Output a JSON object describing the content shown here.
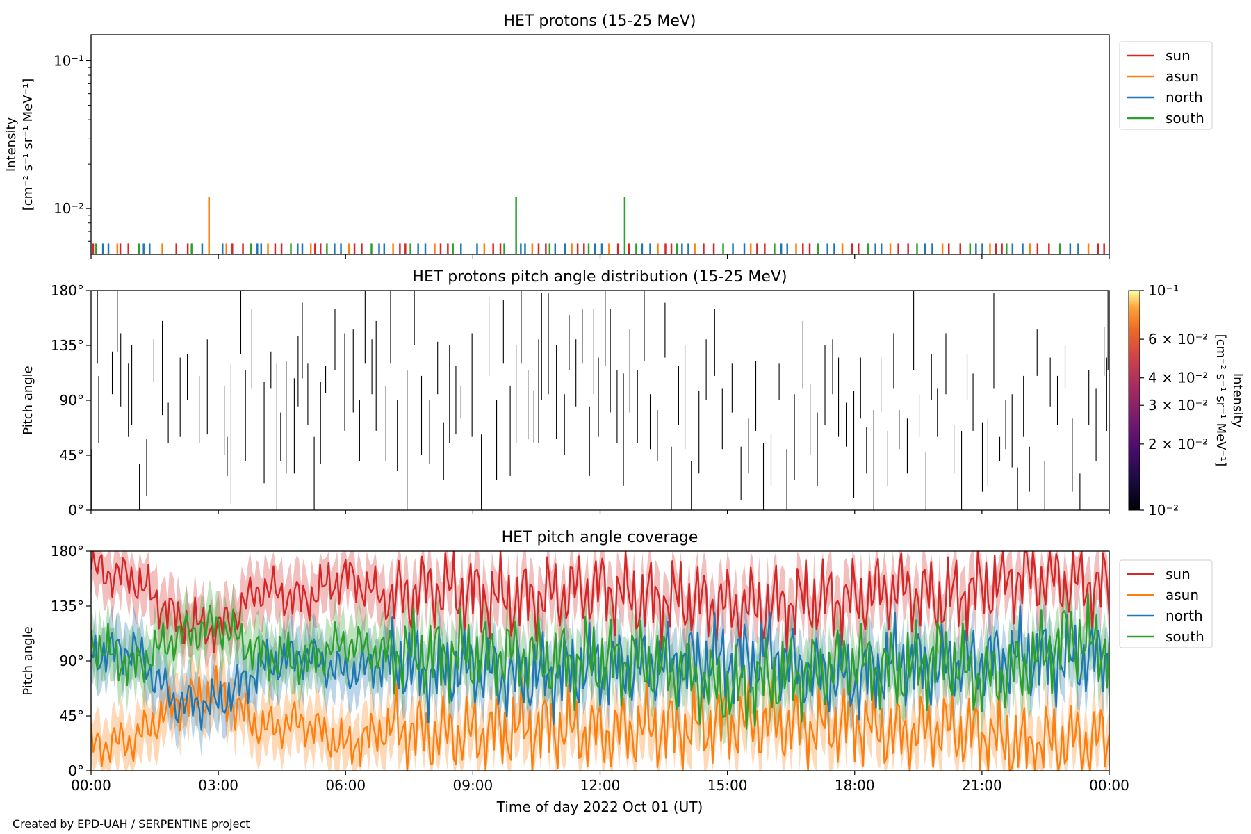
{
  "figure": {
    "credit": "Created by EPD-UAH / SERPENTINE project",
    "xlabel": "Time of day 2022 Oct 01 (UT)",
    "x_ticks": [
      "00:00",
      "03:00",
      "06:00",
      "09:00",
      "12:00",
      "15:00",
      "18:00",
      "21:00",
      "00:00"
    ]
  },
  "chart_data": [
    {
      "type": "line",
      "title": "HET protons (15-25 MeV)",
      "xlabel": "",
      "ylabel_lines": [
        "Intensity",
        "[cm⁻² s⁻¹ sr⁻¹ MeV⁻¹]"
      ],
      "yscale": "log",
      "ylim": [
        0.0049,
        0.15
      ],
      "y_ticks": [
        {
          "value": 0.01,
          "label": "10⁻²"
        },
        {
          "value": 0.1,
          "label": "10⁻¹"
        }
      ],
      "xlim_hours": [
        0,
        24
      ],
      "grid": false,
      "legend_placement": "outside right-top",
      "series_colors": {
        "sun": "#d62728",
        "asun": "#ff7f0e",
        "north": "#1f77b4",
        "south": "#2ca02c"
      },
      "series": [
        {
          "name": "sun",
          "color": "#d62728"
        },
        {
          "name": "asun",
          "color": "#ff7f0e"
        },
        {
          "name": "north",
          "color": "#1f77b4"
        },
        {
          "name": "south",
          "color": "#2ca02c"
        }
      ],
      "spike_level_cluster": 0.0058,
      "spikes": [
        {
          "series": "asun",
          "x_hours": 2.78,
          "y": 0.012
        },
        {
          "series": "south",
          "x_hours": 10.02,
          "y": 0.012
        },
        {
          "series": "south",
          "x_hours": 12.58,
          "y": 0.012
        }
      ],
      "spike_times_hours": [
        0.05,
        0.12,
        0.28,
        0.41,
        0.62,
        0.69,
        0.88,
        1.13,
        1.24,
        1.38,
        1.68,
        2.01,
        2.28,
        2.37,
        2.62,
        3.1,
        3.19,
        3.33,
        3.58,
        3.77,
        3.92,
        4.01,
        4.17,
        4.34,
        4.49,
        4.71,
        4.87,
        4.98,
        5.18,
        5.28,
        5.41,
        5.56,
        5.74,
        5.89,
        6.08,
        6.21,
        6.38,
        6.61,
        6.79,
        6.91,
        7.12,
        7.28,
        7.41,
        7.53,
        7.71,
        7.88,
        8.1,
        8.24,
        8.41,
        8.53,
        8.72,
        9.1,
        9.27,
        9.48,
        9.65,
        9.74,
        10.13,
        10.23,
        10.4,
        10.55,
        10.72,
        10.81,
        10.94,
        11.17,
        11.33,
        11.47,
        11.62,
        11.73,
        11.88,
        12.04,
        12.21,
        12.42,
        12.68,
        12.85,
        12.99,
        13.18,
        13.36,
        13.54,
        13.68,
        13.81,
        13.93,
        14.08,
        14.23,
        14.44,
        14.68,
        14.9,
        15.13,
        15.4,
        15.55,
        15.7,
        15.88,
        16.11,
        16.27,
        16.41,
        16.62,
        16.78,
        16.94,
        17.14,
        17.36,
        17.52,
        17.71,
        17.94,
        18.09,
        18.32,
        18.49,
        18.63,
        18.84,
        19.03,
        19.26,
        19.47,
        19.66,
        19.83,
        20.07,
        20.22,
        20.49,
        20.72,
        20.86,
        21.01,
        21.19,
        21.33,
        21.47,
        21.58,
        21.72,
        21.96,
        22.13,
        22.31,
        22.58,
        22.84,
        23.08,
        23.27,
        23.51,
        23.74,
        23.88
      ]
    },
    {
      "type": "heatmap",
      "title": "HET protons pitch angle distribution (15-25 MeV)",
      "ylabel": "Pitch angle",
      "ylim": [
        0,
        180
      ],
      "y_ticks": [
        {
          "value": 0,
          "label": "0°"
        },
        {
          "value": 45,
          "label": "45°"
        },
        {
          "value": 90,
          "label": "90°"
        },
        {
          "value": 135,
          "label": "135°"
        },
        {
          "value": 180,
          "label": "180°"
        }
      ],
      "colorbar": {
        "label_lines": [
          "Intensity",
          "[cm⁻² s⁻¹ sr⁻¹ MeV⁻¹]"
        ],
        "scale": "log",
        "range": [
          0.01,
          0.1
        ],
        "colormap": "inferno",
        "ticks": [
          {
            "value": 0.01,
            "label": "10⁻²"
          },
          {
            "value": 0.02,
            "label": "2 × 10⁻²"
          },
          {
            "value": 0.03,
            "label": "3 × 10⁻²"
          },
          {
            "value": 0.04,
            "label": "4 × 10⁻²"
          },
          {
            "value": 0.06,
            "label": "6 × 10⁻²"
          },
          {
            "value": 0.1,
            "label": "10⁻¹"
          }
        ]
      },
      "segment_color": "#000000",
      "segments": [
        [
          0.02,
          0,
          50
        ],
        [
          0.15,
          120,
          180
        ],
        [
          0.18,
          55,
          110
        ],
        [
          0.5,
          95,
          130
        ],
        [
          0.62,
          130,
          180
        ],
        [
          0.7,
          85,
          145
        ],
        [
          0.88,
          60,
          120
        ],
        [
          0.96,
          70,
          135
        ],
        [
          1.14,
          0,
          38
        ],
        [
          1.31,
          12,
          58
        ],
        [
          1.48,
          105,
          140
        ],
        [
          1.68,
          78,
          155
        ],
        [
          1.82,
          55,
          88
        ],
        [
          2.1,
          60,
          125
        ],
        [
          2.27,
          90,
          128
        ],
        [
          2.55,
          55,
          110
        ],
        [
          2.74,
          62,
          140
        ],
        [
          3.14,
          45,
          102
        ],
        [
          3.21,
          28,
          60
        ],
        [
          3.3,
          5,
          120
        ],
        [
          3.53,
          128,
          185
        ],
        [
          3.64,
          40,
          115
        ],
        [
          3.79,
          100,
          165
        ],
        [
          4.08,
          22,
          105
        ],
        [
          4.24,
          100,
          130
        ],
        [
          4.38,
          0,
          120
        ],
        [
          4.47,
          40,
          80
        ],
        [
          4.6,
          30,
          122
        ],
        [
          4.79,
          30,
          108
        ],
        [
          4.88,
          85,
          143
        ],
        [
          4.98,
          108,
          170
        ],
        [
          5.11,
          70,
          120
        ],
        [
          5.26,
          0,
          60
        ],
        [
          5.41,
          38,
          105
        ],
        [
          5.53,
          96,
          118
        ],
        [
          5.75,
          115,
          165
        ],
        [
          5.98,
          65,
          145
        ],
        [
          6.18,
          80,
          148
        ],
        [
          6.33,
          40,
          90
        ],
        [
          6.46,
          120,
          180
        ],
        [
          6.62,
          95,
          140
        ],
        [
          6.72,
          65,
          155
        ],
        [
          6.95,
          40,
          102
        ],
        [
          7.06,
          120,
          180
        ],
        [
          7.22,
          32,
          90
        ],
        [
          7.45,
          0,
          115
        ],
        [
          7.62,
          135,
          180
        ],
        [
          7.79,
          45,
          110
        ],
        [
          7.98,
          38,
          90
        ],
        [
          8.17,
          95,
          138
        ],
        [
          8.31,
          25,
          72
        ],
        [
          8.45,
          55,
          135
        ],
        [
          8.6,
          62,
          118
        ],
        [
          8.72,
          75,
          102
        ],
        [
          8.98,
          60,
          145
        ],
        [
          9.2,
          0,
          62
        ],
        [
          9.38,
          110,
          175
        ],
        [
          9.56,
          25,
          90
        ],
        [
          9.72,
          120,
          172
        ],
        [
          9.88,
          28,
          102
        ],
        [
          10.02,
          55,
          135
        ],
        [
          10.14,
          120,
          180
        ],
        [
          10.3,
          58,
          115
        ],
        [
          10.44,
          55,
          98
        ],
        [
          10.55,
          55,
          140
        ],
        [
          10.62,
          90,
          178
        ],
        [
          10.78,
          95,
          178
        ],
        [
          10.97,
          58,
          135
        ],
        [
          11.16,
          45,
          95
        ],
        [
          11.27,
          115,
          160
        ],
        [
          11.43,
          85,
          140
        ],
        [
          11.58,
          120,
          165
        ],
        [
          11.75,
          28,
          85
        ],
        [
          11.85,
          95,
          165
        ],
        [
          11.96,
          60,
          125
        ],
        [
          12.12,
          118,
          180
        ],
        [
          12.24,
          80,
          165
        ],
        [
          12.4,
          55,
          115
        ],
        [
          12.55,
          20,
          112
        ],
        [
          12.7,
          80,
          148
        ],
        [
          12.88,
          55,
          115
        ],
        [
          13.04,
          122,
          180
        ],
        [
          13.18,
          50,
          95
        ],
        [
          13.35,
          40,
          82
        ],
        [
          13.53,
          125,
          170
        ],
        [
          13.68,
          0,
          52
        ],
        [
          13.85,
          70,
          118
        ],
        [
          14.0,
          50,
          135
        ],
        [
          14.15,
          0,
          40
        ],
        [
          14.33,
          30,
          98
        ],
        [
          14.5,
          90,
          140
        ],
        [
          14.7,
          110,
          165
        ],
        [
          14.88,
          50,
          100
        ],
        [
          15.11,
          80,
          120
        ],
        [
          15.32,
          8,
          52
        ],
        [
          15.5,
          30,
          75
        ],
        [
          15.67,
          65,
          122
        ],
        [
          15.85,
          0,
          55
        ],
        [
          16.03,
          20,
          63
        ],
        [
          16.22,
          90,
          120
        ],
        [
          16.4,
          0,
          50
        ],
        [
          16.58,
          25,
          95
        ],
        [
          16.78,
          100,
          155
        ],
        [
          16.95,
          45,
          103
        ],
        [
          17.12,
          20,
          80
        ],
        [
          17.3,
          70,
          135
        ],
        [
          17.48,
          95,
          140
        ],
        [
          17.62,
          60,
          125
        ],
        [
          17.8,
          52,
          88
        ],
        [
          17.98,
          10,
          98
        ],
        [
          18.14,
          75,
          125
        ],
        [
          18.28,
          30,
          68
        ],
        [
          18.45,
          0,
          82
        ],
        [
          18.62,
          80,
          125
        ],
        [
          18.78,
          20,
          65
        ],
        [
          18.92,
          100,
          145
        ],
        [
          19.05,
          50,
          82
        ],
        [
          19.24,
          30,
          75
        ],
        [
          19.39,
          115,
          180
        ],
        [
          19.52,
          60,
          95
        ],
        [
          19.68,
          0,
          48
        ],
        [
          19.81,
          90,
          128
        ],
        [
          19.95,
          60,
          100
        ],
        [
          20.15,
          95,
          145
        ],
        [
          20.34,
          30,
          70
        ],
        [
          20.52,
          0,
          65
        ],
        [
          20.65,
          90,
          128
        ],
        [
          20.79,
          65,
          112
        ],
        [
          21.01,
          15,
          72
        ],
        [
          21.14,
          20,
          75
        ],
        [
          21.28,
          100,
          178
        ],
        [
          21.42,
          40,
          60
        ],
        [
          21.56,
          50,
          90
        ],
        [
          21.71,
          35,
          95
        ],
        [
          21.84,
          0,
          35
        ],
        [
          21.98,
          60,
          110
        ],
        [
          22.12,
          15,
          52
        ],
        [
          22.3,
          110,
          148
        ],
        [
          22.48,
          0,
          40
        ],
        [
          22.61,
          85,
          125
        ],
        [
          22.78,
          70,
          110
        ],
        [
          22.96,
          100,
          135
        ],
        [
          23.13,
          15,
          75
        ],
        [
          23.31,
          0,
          30
        ],
        [
          23.52,
          70,
          115
        ],
        [
          23.69,
          40,
          100
        ],
        [
          23.88,
          110,
          150
        ],
        [
          23.94,
          65,
          125
        ],
        [
          23.97,
          115,
          180
        ]
      ]
    },
    {
      "type": "line",
      "title": "HET pitch angle coverage",
      "xlabel": "Time of day 2022 Oct 01 (UT)",
      "ylabel": "Pitch angle",
      "ylim": [
        0,
        180
      ],
      "y_ticks": [
        {
          "value": 0,
          "label": "0°"
        },
        {
          "value": 45,
          "label": "45°"
        },
        {
          "value": 90,
          "label": "90°"
        },
        {
          "value": 135,
          "label": "135°"
        },
        {
          "value": 180,
          "label": "180°"
        }
      ],
      "grid": false,
      "legend_placement": "outside right-top",
      "x_hours": [
        0,
        1,
        2,
        3,
        4,
        5,
        6,
        7,
        8,
        9,
        10,
        11,
        12,
        13,
        14,
        15,
        16,
        17,
        18,
        19,
        20,
        21,
        22,
        23,
        24
      ],
      "series": [
        {
          "name": "sun",
          "color": "#d62728",
          "band_halfwidth": 22,
          "values": [
            165,
            158,
            125,
            115,
            150,
            140,
            160,
            140,
            150,
            145,
            140,
            145,
            150,
            140,
            140,
            135,
            135,
            140,
            140,
            150,
            140,
            150,
            160,
            155,
            150
          ]
        },
        {
          "name": "asun",
          "color": "#ff7f0e",
          "band_halfwidth": 22,
          "values": [
            20,
            25,
            55,
            65,
            35,
            40,
            20,
            35,
            30,
            30,
            35,
            35,
            30,
            35,
            35,
            40,
            40,
            35,
            40,
            30,
            35,
            30,
            20,
            25,
            25
          ]
        },
        {
          "name": "north",
          "color": "#1f77b4",
          "band_halfwidth": 22,
          "values": [
            95,
            100,
            55,
            55,
            85,
            95,
            80,
            90,
            80,
            85,
            75,
            80,
            85,
            85,
            90,
            90,
            95,
            80,
            75,
            90,
            85,
            90,
            95,
            90,
            95
          ]
        },
        {
          "name": "south",
          "color": "#2ca02c",
          "band_halfwidth": 22,
          "values": [
            105,
            85,
            110,
            120,
            95,
            90,
            105,
            95,
            95,
            95,
            95,
            90,
            90,
            90,
            80,
            65,
            75,
            80,
            90,
            80,
            95,
            75,
            85,
            110,
            100
          ]
        }
      ]
    }
  ]
}
